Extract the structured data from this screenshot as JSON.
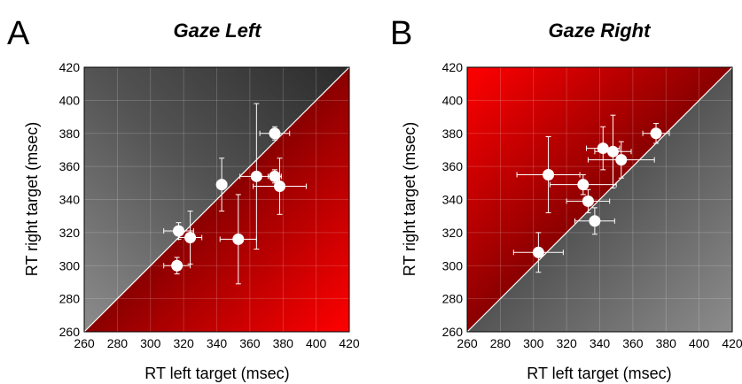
{
  "chart_data": [
    {
      "type": "scatter",
      "panel_letter": "A",
      "title": "Gaze Left",
      "xlabel": "RT left target (msec)",
      "ylabel": "RT right target (msec)",
      "xlim": [
        260,
        420
      ],
      "ylim": [
        260,
        420
      ],
      "ticks": [
        260,
        280,
        300,
        320,
        340,
        360,
        380,
        400,
        420
      ],
      "grid": true,
      "diagonal": true,
      "background": {
        "upper": "gray",
        "lower": "red"
      },
      "points": [
        {
          "x": 375,
          "y": 380,
          "x_err": 9,
          "y_err": 4
        },
        {
          "x": 364,
          "y": 354,
          "x_err": 10,
          "y_err": 44
        },
        {
          "x": 343,
          "y": 349,
          "x_err": 3,
          "y_err": 16
        },
        {
          "x": 375,
          "y": 354,
          "x_err": 4,
          "y_err": 4
        },
        {
          "x": 378,
          "y": 348,
          "x_err": 16,
          "y_err": 17
        },
        {
          "x": 317,
          "y": 321,
          "x_err": 9,
          "y_err": 5
        },
        {
          "x": 324,
          "y": 317,
          "x_err": 7,
          "y_err": 16
        },
        {
          "x": 353,
          "y": 316,
          "x_err": 11,
          "y_err": 27
        },
        {
          "x": 316,
          "y": 300,
          "x_err": 8,
          "y_err": 5
        }
      ]
    },
    {
      "type": "scatter",
      "panel_letter": "B",
      "title": "Gaze Right",
      "xlabel": "RT left target (msec)",
      "ylabel": "RT right target (msec)",
      "xlim": [
        260,
        420
      ],
      "ylim": [
        260,
        420
      ],
      "ticks": [
        260,
        280,
        300,
        320,
        340,
        360,
        380,
        400,
        420
      ],
      "grid": true,
      "diagonal": true,
      "background": {
        "upper": "red",
        "lower": "gray"
      },
      "points": [
        {
          "x": 374,
          "y": 380,
          "x_err": 8,
          "y_err": 6
        },
        {
          "x": 309,
          "y": 355,
          "x_err": 19,
          "y_err": 23
        },
        {
          "x": 342,
          "y": 371,
          "x_err": 10,
          "y_err": 13
        },
        {
          "x": 348,
          "y": 369,
          "x_err": 11,
          "y_err": 22
        },
        {
          "x": 353,
          "y": 364,
          "x_err": 20,
          "y_err": 11
        },
        {
          "x": 330,
          "y": 349,
          "x_err": 20,
          "y_err": 6
        },
        {
          "x": 333,
          "y": 339,
          "x_err": 13,
          "y_err": 7
        },
        {
          "x": 337,
          "y": 327,
          "x_err": 12,
          "y_err": 8
        },
        {
          "x": 303,
          "y": 308,
          "x_err": 15,
          "y_err": 12
        }
      ]
    }
  ]
}
